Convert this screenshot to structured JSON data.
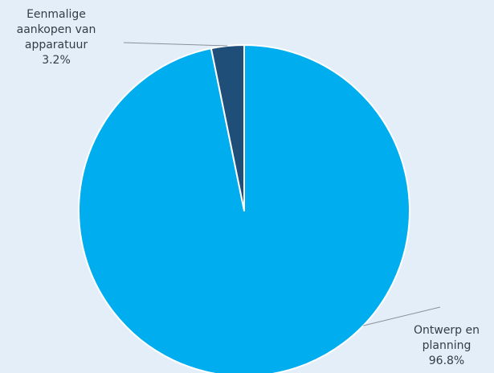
{
  "chart_data": {
    "type": "pie",
    "title": "",
    "start_angle_deg": 0,
    "direction": "clockwise",
    "slices": [
      {
        "label_lines": [
          "Ontwerp en",
          "planning"
        ],
        "value": 96.8,
        "value_label": "96.8%",
        "color": "#00aeef"
      },
      {
        "label_lines": [
          "Eenmalige",
          "aankopen van",
          "apparatuur"
        ],
        "value": 3.2,
        "value_label": "3.2%",
        "color": "#1f4e79"
      }
    ],
    "slice_border_color": "#ffffff",
    "leader_line_color": "#8a9099",
    "background_color": "#e3eef8"
  }
}
